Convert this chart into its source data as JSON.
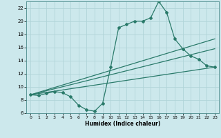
{
  "xlabel": "Humidex (Indice chaleur)",
  "bg_color": "#cce8ec",
  "line_color": "#2a7a6a",
  "grid_color": "#b0d4d8",
  "xlim": [
    -0.5,
    23.5
  ],
  "ylim": [
    6,
    23
  ],
  "xticks": [
    0,
    1,
    2,
    3,
    4,
    5,
    6,
    7,
    8,
    9,
    10,
    11,
    12,
    13,
    14,
    15,
    16,
    17,
    18,
    19,
    20,
    21,
    22,
    23
  ],
  "yticks": [
    6,
    8,
    10,
    12,
    14,
    16,
    18,
    20,
    22
  ],
  "line1_x": [
    0,
    1,
    2,
    3,
    4,
    5,
    6,
    7,
    8,
    9,
    10,
    11,
    12,
    13,
    14,
    15,
    16,
    17,
    18,
    19,
    20,
    21,
    22,
    23
  ],
  "line1_y": [
    8.8,
    8.7,
    9.0,
    9.3,
    9.1,
    8.5,
    7.2,
    6.5,
    6.3,
    7.5,
    13.0,
    19.0,
    19.5,
    20.0,
    20.0,
    20.5,
    23.0,
    21.3,
    17.3,
    15.8,
    14.7,
    14.2,
    13.2,
    13.0
  ],
  "line2_x": [
    0,
    23
  ],
  "line2_y": [
    8.8,
    13.0
  ],
  "line3_x": [
    0,
    23
  ],
  "line3_y": [
    8.8,
    15.8
  ],
  "line4_x": [
    0,
    23
  ],
  "line4_y": [
    8.8,
    17.3
  ]
}
